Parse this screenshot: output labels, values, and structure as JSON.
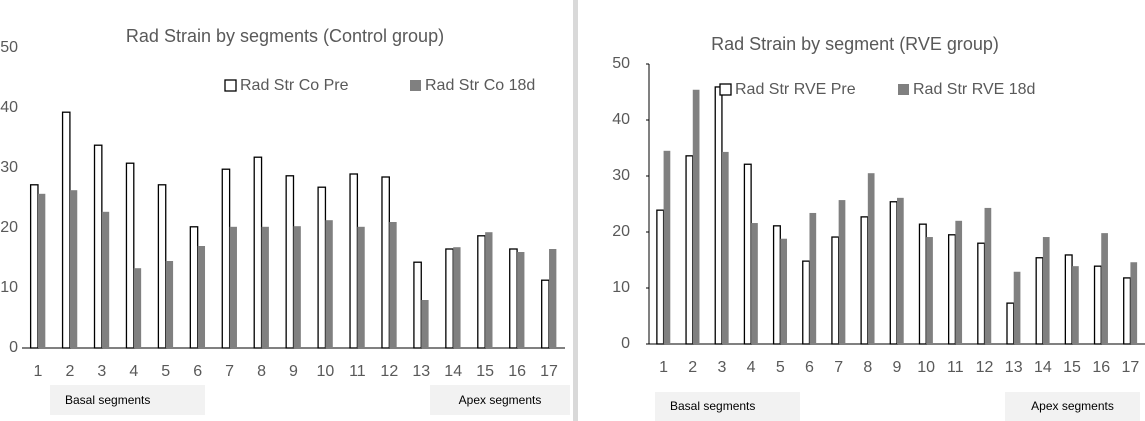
{
  "chart_data": [
    {
      "type": "bar",
      "title": "Rad Strain by segments (Control group)",
      "categories": [
        "1",
        "2",
        "3",
        "4",
        "5",
        "6",
        "7",
        "8",
        "9",
        "10",
        "11",
        "12",
        "13",
        "14",
        "15",
        "16",
        "17"
      ],
      "series": [
        {
          "name": "Rad Str Co Pre",
          "color": "#ffffff",
          "values": [
            27.2,
            39.3,
            33.8,
            30.8,
            27.2,
            20.2,
            29.8,
            31.8,
            28.7,
            26.8,
            29,
            28.5,
            14.3,
            16.5,
            18.7,
            16.5,
            11.3
          ]
        },
        {
          "name": "Rad Str Co 18d",
          "color": "#808080",
          "values": [
            25.7,
            26.3,
            22.7,
            13.3,
            14.5,
            17,
            20.2,
            20.2,
            20.3,
            21.3,
            20.2,
            21,
            8,
            16.8,
            19.3,
            16,
            16.5
          ]
        }
      ],
      "ylim": [
        0,
        50
      ],
      "yticks": [
        0,
        10,
        20,
        30,
        40,
        50
      ],
      "annotations": [
        "Basal segments",
        "Apex segments"
      ]
    },
    {
      "type": "bar",
      "title": "Rad Strain by segment (RVE group)",
      "categories": [
        "1",
        "2",
        "3",
        "4",
        "5",
        "6",
        "7",
        "8",
        "9",
        "10",
        "11",
        "12",
        "13",
        "14",
        "15",
        "16",
        "17"
      ],
      "series": [
        {
          "name": "Rad Str RVE Pre",
          "color": "#ffffff",
          "values": [
            23.9,
            33.6,
            45.9,
            32.1,
            21.1,
            14.8,
            19.1,
            22.7,
            25.4,
            21.4,
            19.5,
            18,
            7.3,
            15.4,
            15.9,
            13.9,
            11.8
          ]
        },
        {
          "name": "Rad Str RVE 18d",
          "color": "#808080",
          "values": [
            34.5,
            45.4,
            34.3,
            21.6,
            18.8,
            23.4,
            25.7,
            30.5,
            26.1,
            19.1,
            22,
            24.3,
            12.9,
            19.1,
            13.9,
            19.8,
            14.6
          ]
        }
      ],
      "ylim": [
        0,
        50
      ],
      "yticks": [
        0,
        10,
        20,
        30,
        40,
        50
      ],
      "annotations": [
        "Basal segments",
        "Apex segments"
      ]
    }
  ]
}
